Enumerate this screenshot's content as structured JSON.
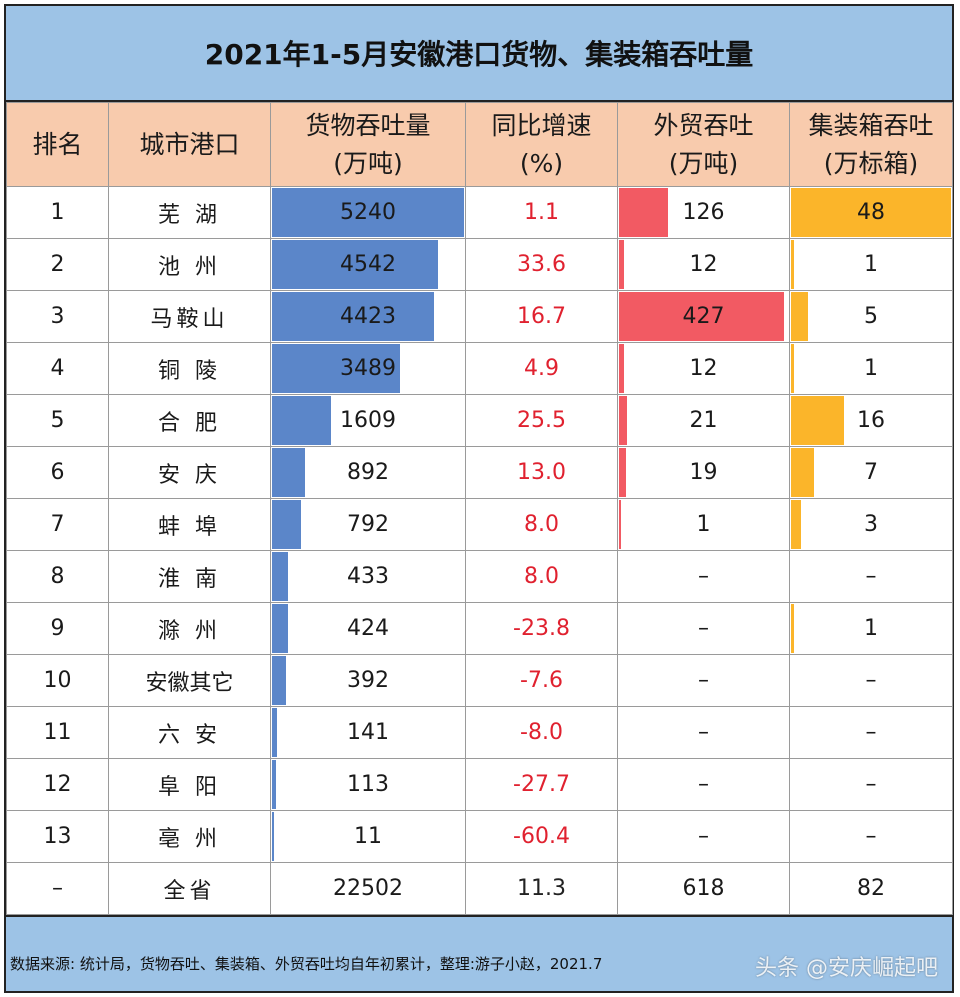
{
  "title": "2021年1-5月安徽港口货物、集装箱吞吐量",
  "headers": {
    "rank": "排名",
    "city": "城市港口",
    "cargo": [
      "货物吞吐量",
      "(万吨)"
    ],
    "growth": [
      "同比增速",
      "(%)"
    ],
    "foreign": [
      "外贸吞吐",
      "(万吨)"
    ],
    "container": [
      "集装箱吞吐",
      "(万标箱)"
    ]
  },
  "colors": {
    "cargo_bar": "#5b86c9",
    "foreign_bar": "#f25a63",
    "container_bar": "#fbb52a",
    "growth_text": "#e0212f",
    "header_bg": "#f8cbad",
    "title_bg": "#9dc3e6"
  },
  "rows": [
    {
      "rank": "1",
      "city": "芜 湖",
      "cargo": "5240",
      "growth": "1.1",
      "foreign": "126",
      "container": "48"
    },
    {
      "rank": "2",
      "city": "池 州",
      "cargo": "4542",
      "growth": "33.6",
      "foreign": "12",
      "container": "1"
    },
    {
      "rank": "3",
      "city": "马鞍山",
      "cargo": "4423",
      "growth": "16.7",
      "foreign": "427",
      "container": "5"
    },
    {
      "rank": "4",
      "city": "铜 陵",
      "cargo": "3489",
      "growth": "4.9",
      "foreign": "12",
      "container": "1"
    },
    {
      "rank": "5",
      "city": "合 肥",
      "cargo": "1609",
      "growth": "25.5",
      "foreign": "21",
      "container": "16"
    },
    {
      "rank": "6",
      "city": "安 庆",
      "cargo": "892",
      "growth": "13.0",
      "foreign": "19",
      "container": "7"
    },
    {
      "rank": "7",
      "city": "蚌 埠",
      "cargo": "792",
      "growth": "8.0",
      "foreign": "1",
      "container": "3"
    },
    {
      "rank": "8",
      "city": "淮 南",
      "cargo": "433",
      "growth": "8.0",
      "foreign": "–",
      "container": "–"
    },
    {
      "rank": "9",
      "city": "滁 州",
      "cargo": "424",
      "growth": "-23.8",
      "foreign": "–",
      "container": "1"
    },
    {
      "rank": "10",
      "city": "安徽其它",
      "cargo": "392",
      "growth": "-7.6",
      "foreign": "–",
      "container": "–"
    },
    {
      "rank": "11",
      "city": "六 安",
      "cargo": "141",
      "growth": "-8.0",
      "foreign": "–",
      "container": "–"
    },
    {
      "rank": "12",
      "city": "阜 阳",
      "cargo": "113",
      "growth": "-27.7",
      "foreign": "–",
      "container": "–"
    },
    {
      "rank": "13",
      "city": "亳 州",
      "cargo": "11",
      "growth": "-60.4",
      "foreign": "–",
      "container": "–"
    }
  ],
  "total": {
    "rank": "–",
    "city": "全省",
    "cargo": "22502",
    "growth": "11.3",
    "foreign": "618",
    "container": "82"
  },
  "footer_note": "数据来源: 统计局，货物吞吐、集装箱、外贸吞吐均自年初累计，整理:游子小赵，2021.7",
  "watermark": "头条 @安庆崛起吧"
}
